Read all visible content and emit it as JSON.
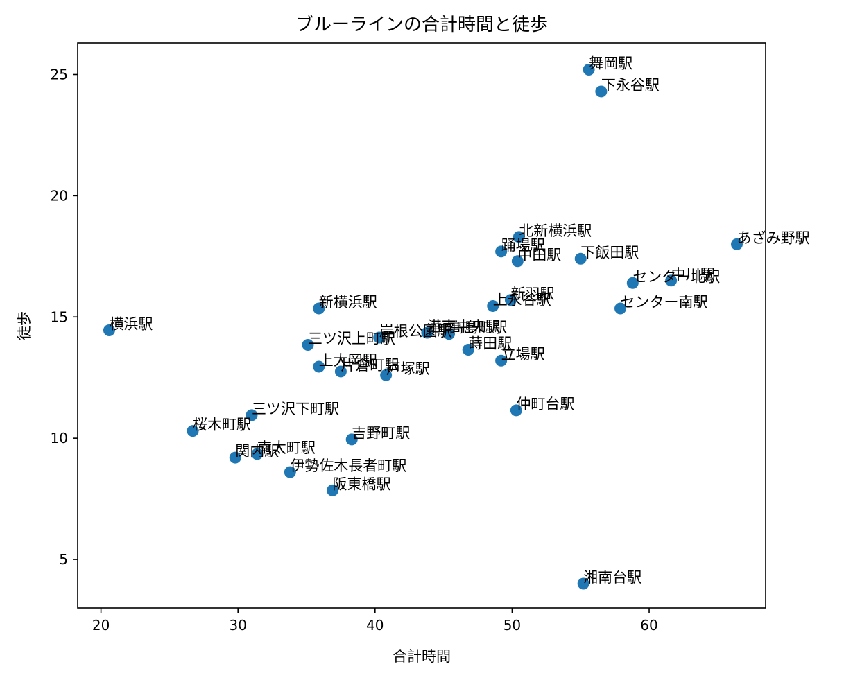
{
  "chart_data": {
    "type": "scatter",
    "title": "ブルーラインの合計時間と徒歩",
    "xlabel": "合計時間",
    "ylabel": "徒歩",
    "xlim": [
      18.3,
      68.5
    ],
    "ylim": [
      3.0,
      26.3
    ],
    "xticks": [
      20,
      30,
      40,
      50,
      60
    ],
    "yticks": [
      5,
      10,
      15,
      20,
      25
    ],
    "marker_color": "#1f77b4",
    "grid": false,
    "points": [
      {
        "label": "舞岡駅",
        "x": 55.6,
        "y": 25.2
      },
      {
        "label": "下永谷駅",
        "x": 56.5,
        "y": 24.3
      },
      {
        "label": "北新横浜駅",
        "x": 50.5,
        "y": 18.3
      },
      {
        "label": "あざみ野駅",
        "x": 66.4,
        "y": 18.0
      },
      {
        "label": "踊場駅",
        "x": 49.2,
        "y": 17.7
      },
      {
        "label": "中田駅",
        "x": 50.4,
        "y": 17.3
      },
      {
        "label": "下飯田駅",
        "x": 55.0,
        "y": 17.4
      },
      {
        "label": "センター北駅",
        "x": 58.8,
        "y": 16.4
      },
      {
        "label": "中川駅",
        "x": 61.6,
        "y": 16.5
      },
      {
        "label": "新羽駅",
        "x": 49.9,
        "y": 15.7
      },
      {
        "label": "上永谷駅",
        "x": 48.6,
        "y": 15.45
      },
      {
        "label": "センター南駅",
        "x": 57.9,
        "y": 15.35
      },
      {
        "label": "新横浜駅",
        "x": 35.9,
        "y": 15.35
      },
      {
        "label": "横浜駅",
        "x": 20.6,
        "y": 14.45
      },
      {
        "label": "岸根公園駅",
        "x": 40.3,
        "y": 14.15
      },
      {
        "label": "港南中央駅",
        "x": 43.8,
        "y": 14.35
      },
      {
        "label": "高島町駅",
        "x": 45.4,
        "y": 14.3
      },
      {
        "label": "三ツ沢上町駅",
        "x": 35.1,
        "y": 13.85
      },
      {
        "label": "片倉町駅",
        "x": 37.5,
        "y": 12.75
      },
      {
        "label": "上大岡駅",
        "x": 35.9,
        "y": 12.95
      },
      {
        "label": "戸塚駅",
        "x": 40.8,
        "y": 12.6
      },
      {
        "label": "蒔田駅",
        "x": 46.8,
        "y": 13.65
      },
      {
        "label": "立場駅",
        "x": 49.2,
        "y": 13.2
      },
      {
        "label": "仲町台駅",
        "x": 50.3,
        "y": 11.15
      },
      {
        "label": "三ツ沢下町駅",
        "x": 31.0,
        "y": 10.95
      },
      {
        "label": "桜木町駅",
        "x": 26.7,
        "y": 10.3
      },
      {
        "label": "吉野町駅",
        "x": 38.3,
        "y": 9.95
      },
      {
        "label": "関内駅",
        "x": 29.8,
        "y": 9.2
      },
      {
        "label": "南太町駅",
        "x": 31.4,
        "y": 9.35
      },
      {
        "label": "伊勢佐木長者町駅",
        "x": 33.8,
        "y": 8.6
      },
      {
        "label": "阪東橋駅",
        "x": 36.9,
        "y": 7.85
      },
      {
        "label": "湘南台駅",
        "x": 55.2,
        "y": 4.0
      }
    ]
  }
}
